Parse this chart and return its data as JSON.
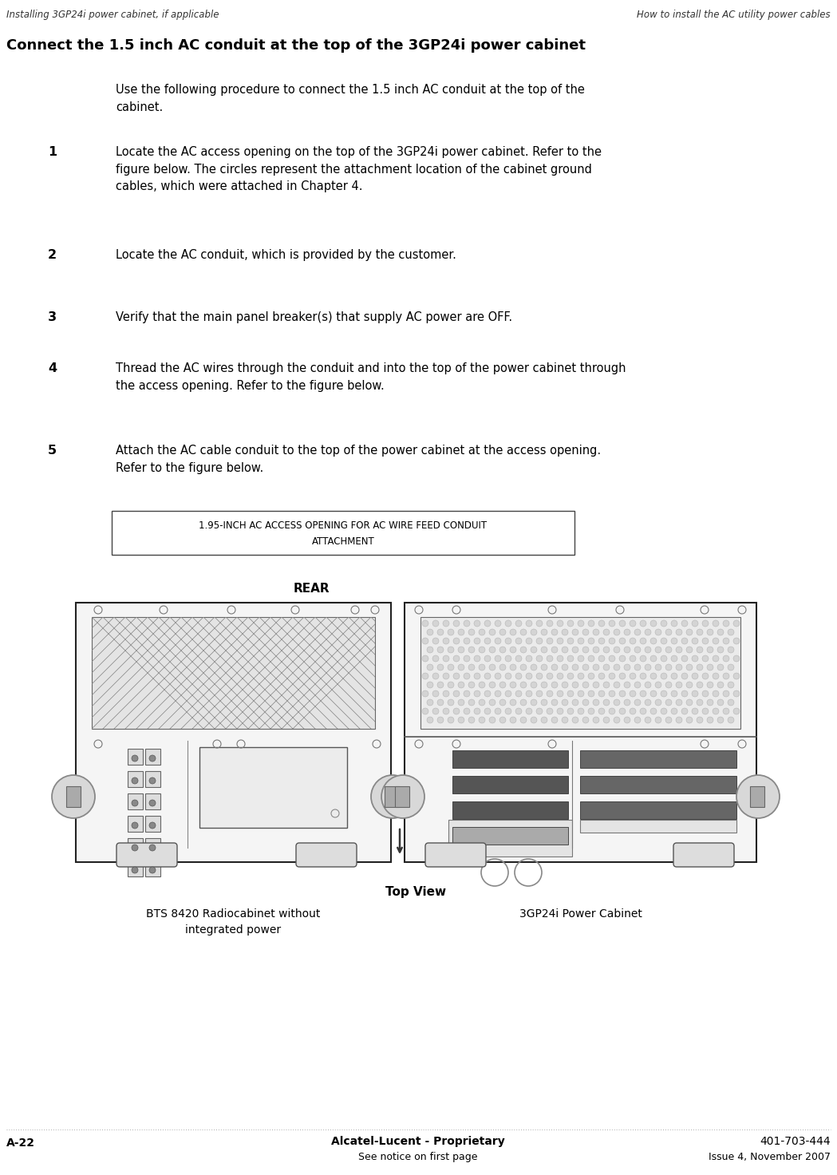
{
  "header_left": "Installing 3GP24i power cabinet, if applicable",
  "header_right": "How to install the AC utility power cables",
  "title": "Connect the 1.5 inch AC conduit at the top of the 3GP24i power cabinet",
  "intro_text": "Use the following procedure to connect the 1.5 inch AC conduit at the top of the\ncabinet.",
  "steps": [
    {
      "num": "1",
      "text": "Locate the AC access opening on the top of the 3GP24i power cabinet. Refer to the\nfigure below. The circles represent the attachment location of the cabinet ground\ncables, which were attached in Chapter 4."
    },
    {
      "num": "2",
      "text": "Locate the AC conduit, which is provided by the customer."
    },
    {
      "num": "3",
      "text": "Verify that the main panel breaker(s) that supply AC power are OFF."
    },
    {
      "num": "4",
      "text": "Thread the AC wires through the conduit and into the top of the power cabinet through\nthe access opening. Refer to the figure below."
    },
    {
      "num": "5",
      "text": "Attach the AC cable conduit to the top of the power cabinet at the access opening.\nRefer to the figure below."
    }
  ],
  "callout_text": "1.95-INCH AC ACCESS OPENING FOR AC WIRE FEED CONDUIT\nATTACHMENT",
  "rear_label": "REAR",
  "top_view_label": "Top View",
  "label_left": "BTS 8420 Radiocabinet without\nintegrated power",
  "label_right": "3GP24i Power Cabinet",
  "footer_left": "A-22",
  "footer_center1": "Alcatel-Lucent - Proprietary",
  "footer_center2": "See notice on first page",
  "footer_right1": "401-703-444",
  "footer_right2": "Issue 4, November 2007",
  "bg_color": "#ffffff",
  "text_color": "#000000"
}
